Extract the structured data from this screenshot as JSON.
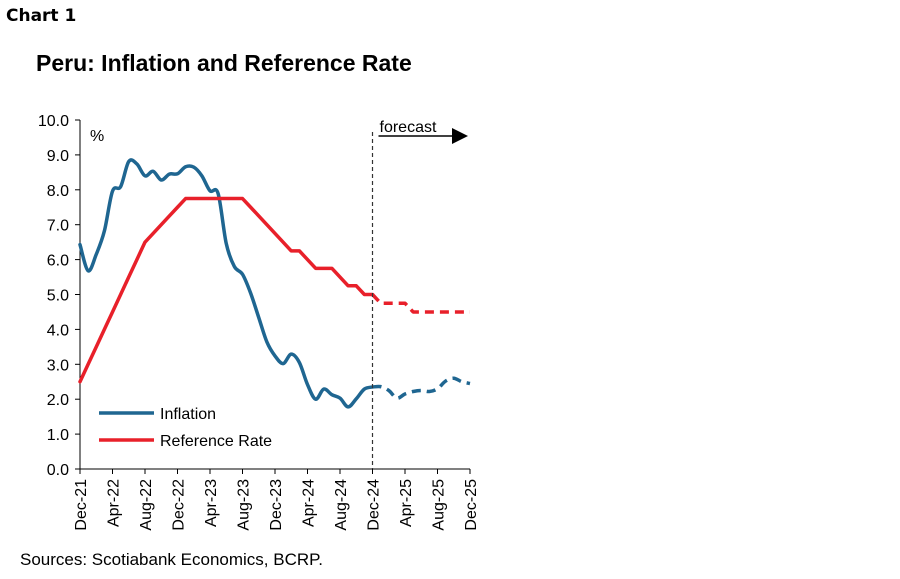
{
  "header": {
    "chart_number": "Chart 1",
    "title": "Peru: Inflation and Reference Rate"
  },
  "footer": {
    "sources": "Sources: Scotiabank Economics, BCRP."
  },
  "colors": {
    "inflation": "#1f6691",
    "reference_rate": "#e8202a",
    "forecast_line": "#333333"
  },
  "chart_data": {
    "type": "line",
    "title": "Peru: Inflation and Reference Rate",
    "xlabel": "",
    "ylabel": "%",
    "ylim": [
      0,
      10
    ],
    "y_ticks": [
      "0.0",
      "1.0",
      "2.0",
      "3.0",
      "4.0",
      "5.0",
      "6.0",
      "7.0",
      "8.0",
      "9.0",
      "10.0"
    ],
    "x_tick_labels": [
      "Dec-21",
      "Apr-22",
      "Aug-22",
      "Dec-22",
      "Apr-23",
      "Aug-23",
      "Dec-23",
      "Apr-24",
      "Aug-24",
      "Dec-24",
      "Apr-25",
      "Aug-25",
      "Dec-25"
    ],
    "x_tick_index": [
      0,
      4,
      8,
      12,
      16,
      20,
      24,
      28,
      32,
      36,
      40,
      44,
      48
    ],
    "forecast_start_index": 36,
    "forecast_label": "forecast",
    "legend_position": "bottom-left",
    "grid": false,
    "series": [
      {
        "name": "Inflation",
        "color": "#1f6691",
        "values": [
          6.43,
          5.68,
          6.15,
          6.82,
          7.96,
          8.09,
          8.81,
          8.74,
          8.4,
          8.53,
          8.28,
          8.45,
          8.46,
          8.66,
          8.65,
          8.4,
          7.97,
          7.89,
          6.46,
          5.8,
          5.58,
          5.04,
          4.34,
          3.64,
          3.24,
          3.02,
          3.29,
          3.05,
          2.42,
          2.0,
          2.29,
          2.13,
          2.03,
          1.78,
          2.01,
          2.29,
          2.35,
          2.36,
          2.25,
          2.03,
          2.15,
          2.22,
          2.25,
          2.22,
          2.3,
          2.52,
          2.6,
          2.5,
          2.45
        ],
        "forecast_from_index": 36
      },
      {
        "name": "Reference Rate",
        "color": "#e8202a",
        "values": [
          2.5,
          3.0,
          3.5,
          4.0,
          4.5,
          5.0,
          5.5,
          6.0,
          6.5,
          6.75,
          7.0,
          7.25,
          7.5,
          7.75,
          7.75,
          7.75,
          7.75,
          7.75,
          7.75,
          7.75,
          7.75,
          7.5,
          7.25,
          7.0,
          6.75,
          6.5,
          6.25,
          6.25,
          6.0,
          5.75,
          5.75,
          5.75,
          5.5,
          5.25,
          5.25,
          5.0,
          5.0,
          4.75,
          4.75,
          4.75,
          4.75,
          4.5,
          4.5,
          4.5,
          4.5,
          4.5,
          4.5,
          4.5,
          4.5
        ],
        "forecast_from_index": 36
      }
    ]
  }
}
